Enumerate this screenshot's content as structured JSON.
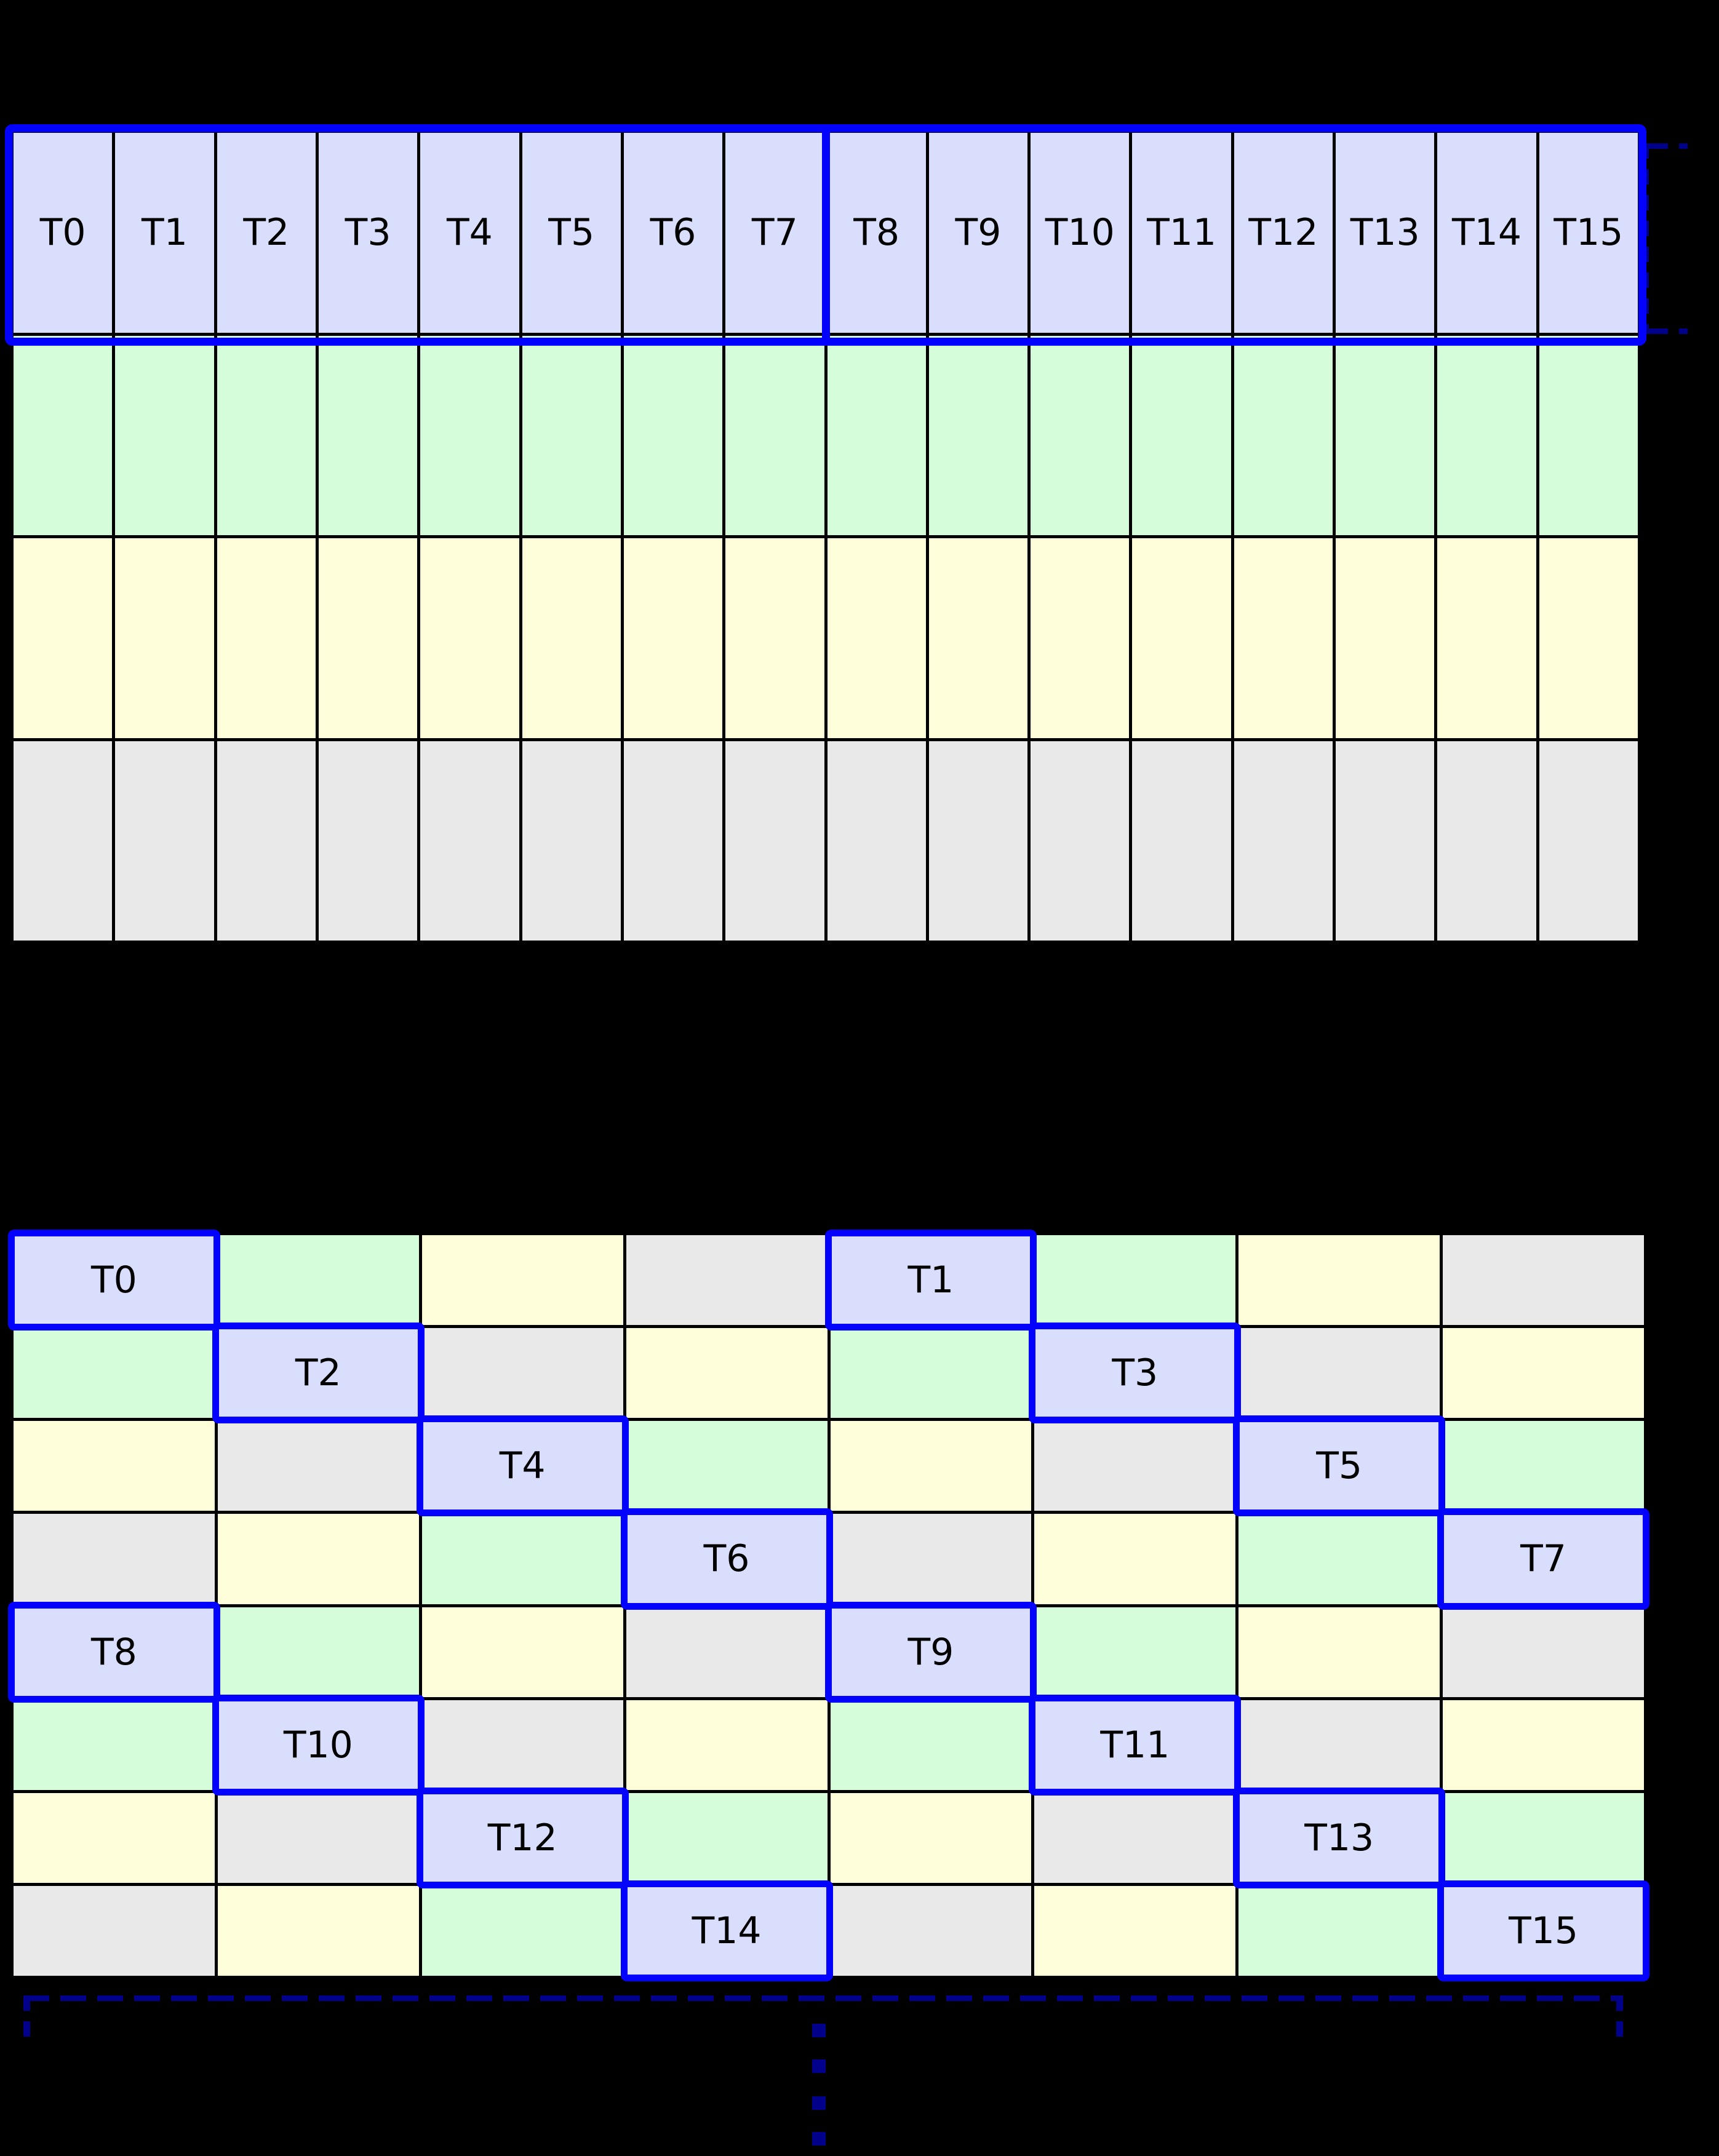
{
  "colors": {
    "background": "#000000",
    "grid_line": "#000000",
    "label_text": "#000000",
    "highlight_border": "#0202fe",
    "bracket_navy": "#00008b",
    "fills": {
      "blue": "#d8defb",
      "green": "#d6fdd9",
      "yellow": "#fdfdd9",
      "gray": "#e9e9e9"
    }
  },
  "top_grid": {
    "columns": 16,
    "thread_labels": [
      "T0",
      "T1",
      "T2",
      "T3",
      "T4",
      "T5",
      "T6",
      "T7",
      "T8",
      "T9",
      "T10",
      "T11",
      "T12",
      "T13",
      "T14",
      "T15"
    ],
    "rows": [
      {
        "fill": "blue",
        "labeled": true
      },
      {
        "fill": "green",
        "labeled": false
      },
      {
        "fill": "yellow",
        "labeled": false
      },
      {
        "fill": "gray",
        "labeled": false
      }
    ]
  },
  "bottom_grid": {
    "columns": 8,
    "rows": [
      {
        "cells": [
          {
            "fill": "blue",
            "label": "T0"
          },
          {
            "fill": "green"
          },
          {
            "fill": "yellow"
          },
          {
            "fill": "gray"
          },
          {
            "fill": "blue",
            "label": "T1"
          },
          {
            "fill": "green"
          },
          {
            "fill": "yellow"
          },
          {
            "fill": "gray"
          }
        ]
      },
      {
        "cells": [
          {
            "fill": "green"
          },
          {
            "fill": "blue",
            "label": "T2"
          },
          {
            "fill": "gray"
          },
          {
            "fill": "yellow"
          },
          {
            "fill": "green"
          },
          {
            "fill": "blue",
            "label": "T3"
          },
          {
            "fill": "gray"
          },
          {
            "fill": "yellow"
          }
        ]
      },
      {
        "cells": [
          {
            "fill": "yellow"
          },
          {
            "fill": "gray"
          },
          {
            "fill": "blue",
            "label": "T4"
          },
          {
            "fill": "green"
          },
          {
            "fill": "yellow"
          },
          {
            "fill": "gray"
          },
          {
            "fill": "blue",
            "label": "T5"
          },
          {
            "fill": "green"
          }
        ]
      },
      {
        "cells": [
          {
            "fill": "gray"
          },
          {
            "fill": "yellow"
          },
          {
            "fill": "green"
          },
          {
            "fill": "blue",
            "label": "T6"
          },
          {
            "fill": "gray"
          },
          {
            "fill": "yellow"
          },
          {
            "fill": "green"
          },
          {
            "fill": "blue",
            "label": "T7"
          }
        ]
      },
      {
        "cells": [
          {
            "fill": "blue",
            "label": "T8"
          },
          {
            "fill": "green"
          },
          {
            "fill": "yellow"
          },
          {
            "fill": "gray"
          },
          {
            "fill": "blue",
            "label": "T9"
          },
          {
            "fill": "green"
          },
          {
            "fill": "yellow"
          },
          {
            "fill": "gray"
          }
        ]
      },
      {
        "cells": [
          {
            "fill": "green"
          },
          {
            "fill": "blue",
            "label": "T10"
          },
          {
            "fill": "gray"
          },
          {
            "fill": "yellow"
          },
          {
            "fill": "green"
          },
          {
            "fill": "blue",
            "label": "T11"
          },
          {
            "fill": "gray"
          },
          {
            "fill": "yellow"
          }
        ]
      },
      {
        "cells": [
          {
            "fill": "yellow"
          },
          {
            "fill": "gray"
          },
          {
            "fill": "blue",
            "label": "T12"
          },
          {
            "fill": "green"
          },
          {
            "fill": "yellow"
          },
          {
            "fill": "gray"
          },
          {
            "fill": "blue",
            "label": "T13"
          },
          {
            "fill": "green"
          }
        ]
      },
      {
        "cells": [
          {
            "fill": "gray"
          },
          {
            "fill": "yellow"
          },
          {
            "fill": "green"
          },
          {
            "fill": "blue",
            "label": "T14"
          },
          {
            "fill": "gray"
          },
          {
            "fill": "yellow"
          },
          {
            "fill": "green"
          },
          {
            "fill": "blue",
            "label": "T15"
          }
        ]
      }
    ]
  }
}
